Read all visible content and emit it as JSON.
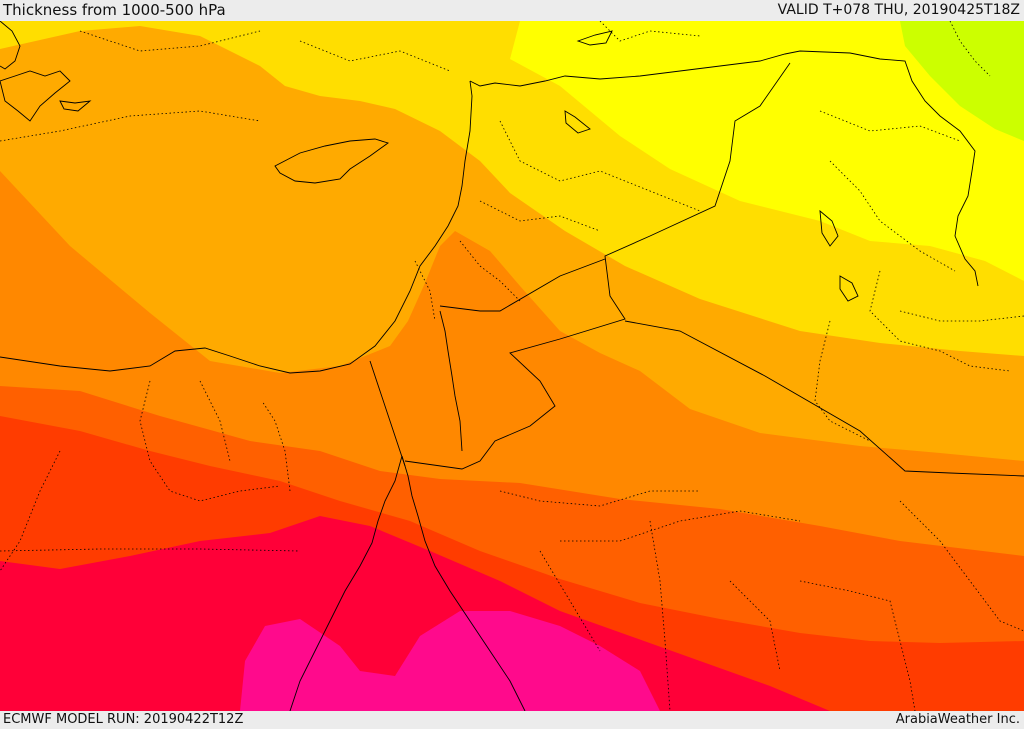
{
  "header": {
    "title": "Thickness from 1000-500 hPa",
    "valid": "VALID T+078 THU, 20190425T18Z"
  },
  "footer": {
    "model_run": "ECMWF MODEL RUN: 20190422T12Z",
    "brand": "ArabiaWeather Inc."
  },
  "palette": {
    "band_1": "#ccff00",
    "band_2": "#ffff00",
    "band_3": "#ffde00",
    "band_4": "#ffaa00",
    "band_5": "#ff8800",
    "band_6": "#ff6000",
    "band_7": "#ff3c00",
    "band_8": "#ff0038",
    "band_9": "#ff0a8c"
  }
}
